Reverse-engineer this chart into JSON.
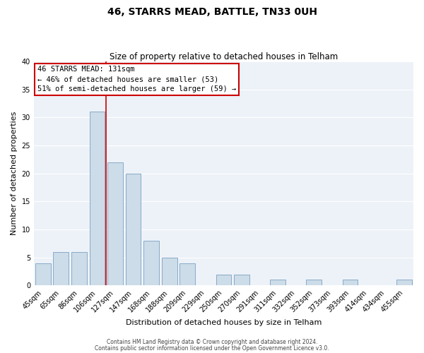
{
  "title": "46, STARRS MEAD, BATTLE, TN33 0UH",
  "subtitle": "Size of property relative to detached houses in Telham",
  "xlabel": "Distribution of detached houses by size in Telham",
  "ylabel": "Number of detached properties",
  "bar_labels": [
    "45sqm",
    "65sqm",
    "86sqm",
    "106sqm",
    "127sqm",
    "147sqm",
    "168sqm",
    "188sqm",
    "209sqm",
    "229sqm",
    "250sqm",
    "270sqm",
    "291sqm",
    "311sqm",
    "332sqm",
    "352sqm",
    "373sqm",
    "393sqm",
    "414sqm",
    "434sqm",
    "455sqm"
  ],
  "bar_values": [
    4,
    6,
    6,
    31,
    22,
    20,
    8,
    5,
    4,
    0,
    2,
    2,
    0,
    1,
    0,
    1,
    0,
    1,
    0,
    0,
    1
  ],
  "bar_color": "#ccdce8",
  "bar_edge_color": "#88aac8",
  "ref_line_x": 3.5,
  "reference_line_color": "#cc0000",
  "ylim": [
    0,
    40
  ],
  "yticks": [
    0,
    5,
    10,
    15,
    20,
    25,
    30,
    35,
    40
  ],
  "annotation_text": "46 STARRS MEAD: 131sqm\n← 46% of detached houses are smaller (53)\n51% of semi-detached houses are larger (59) →",
  "annotation_box_edge_color": "#cc0000",
  "footer_line1": "Contains HM Land Registry data © Crown copyright and database right 2024.",
  "footer_line2": "Contains public sector information licensed under the Open Government Licence v3.0.",
  "plot_bg_color": "#edf2f8",
  "fig_bg_color": "#ffffff",
  "grid_color": "#ffffff",
  "title_fontsize": 10,
  "subtitle_fontsize": 8.5,
  "axis_label_fontsize": 8,
  "tick_fontsize": 7,
  "annotation_fontsize": 7.5,
  "footer_fontsize": 5.5
}
